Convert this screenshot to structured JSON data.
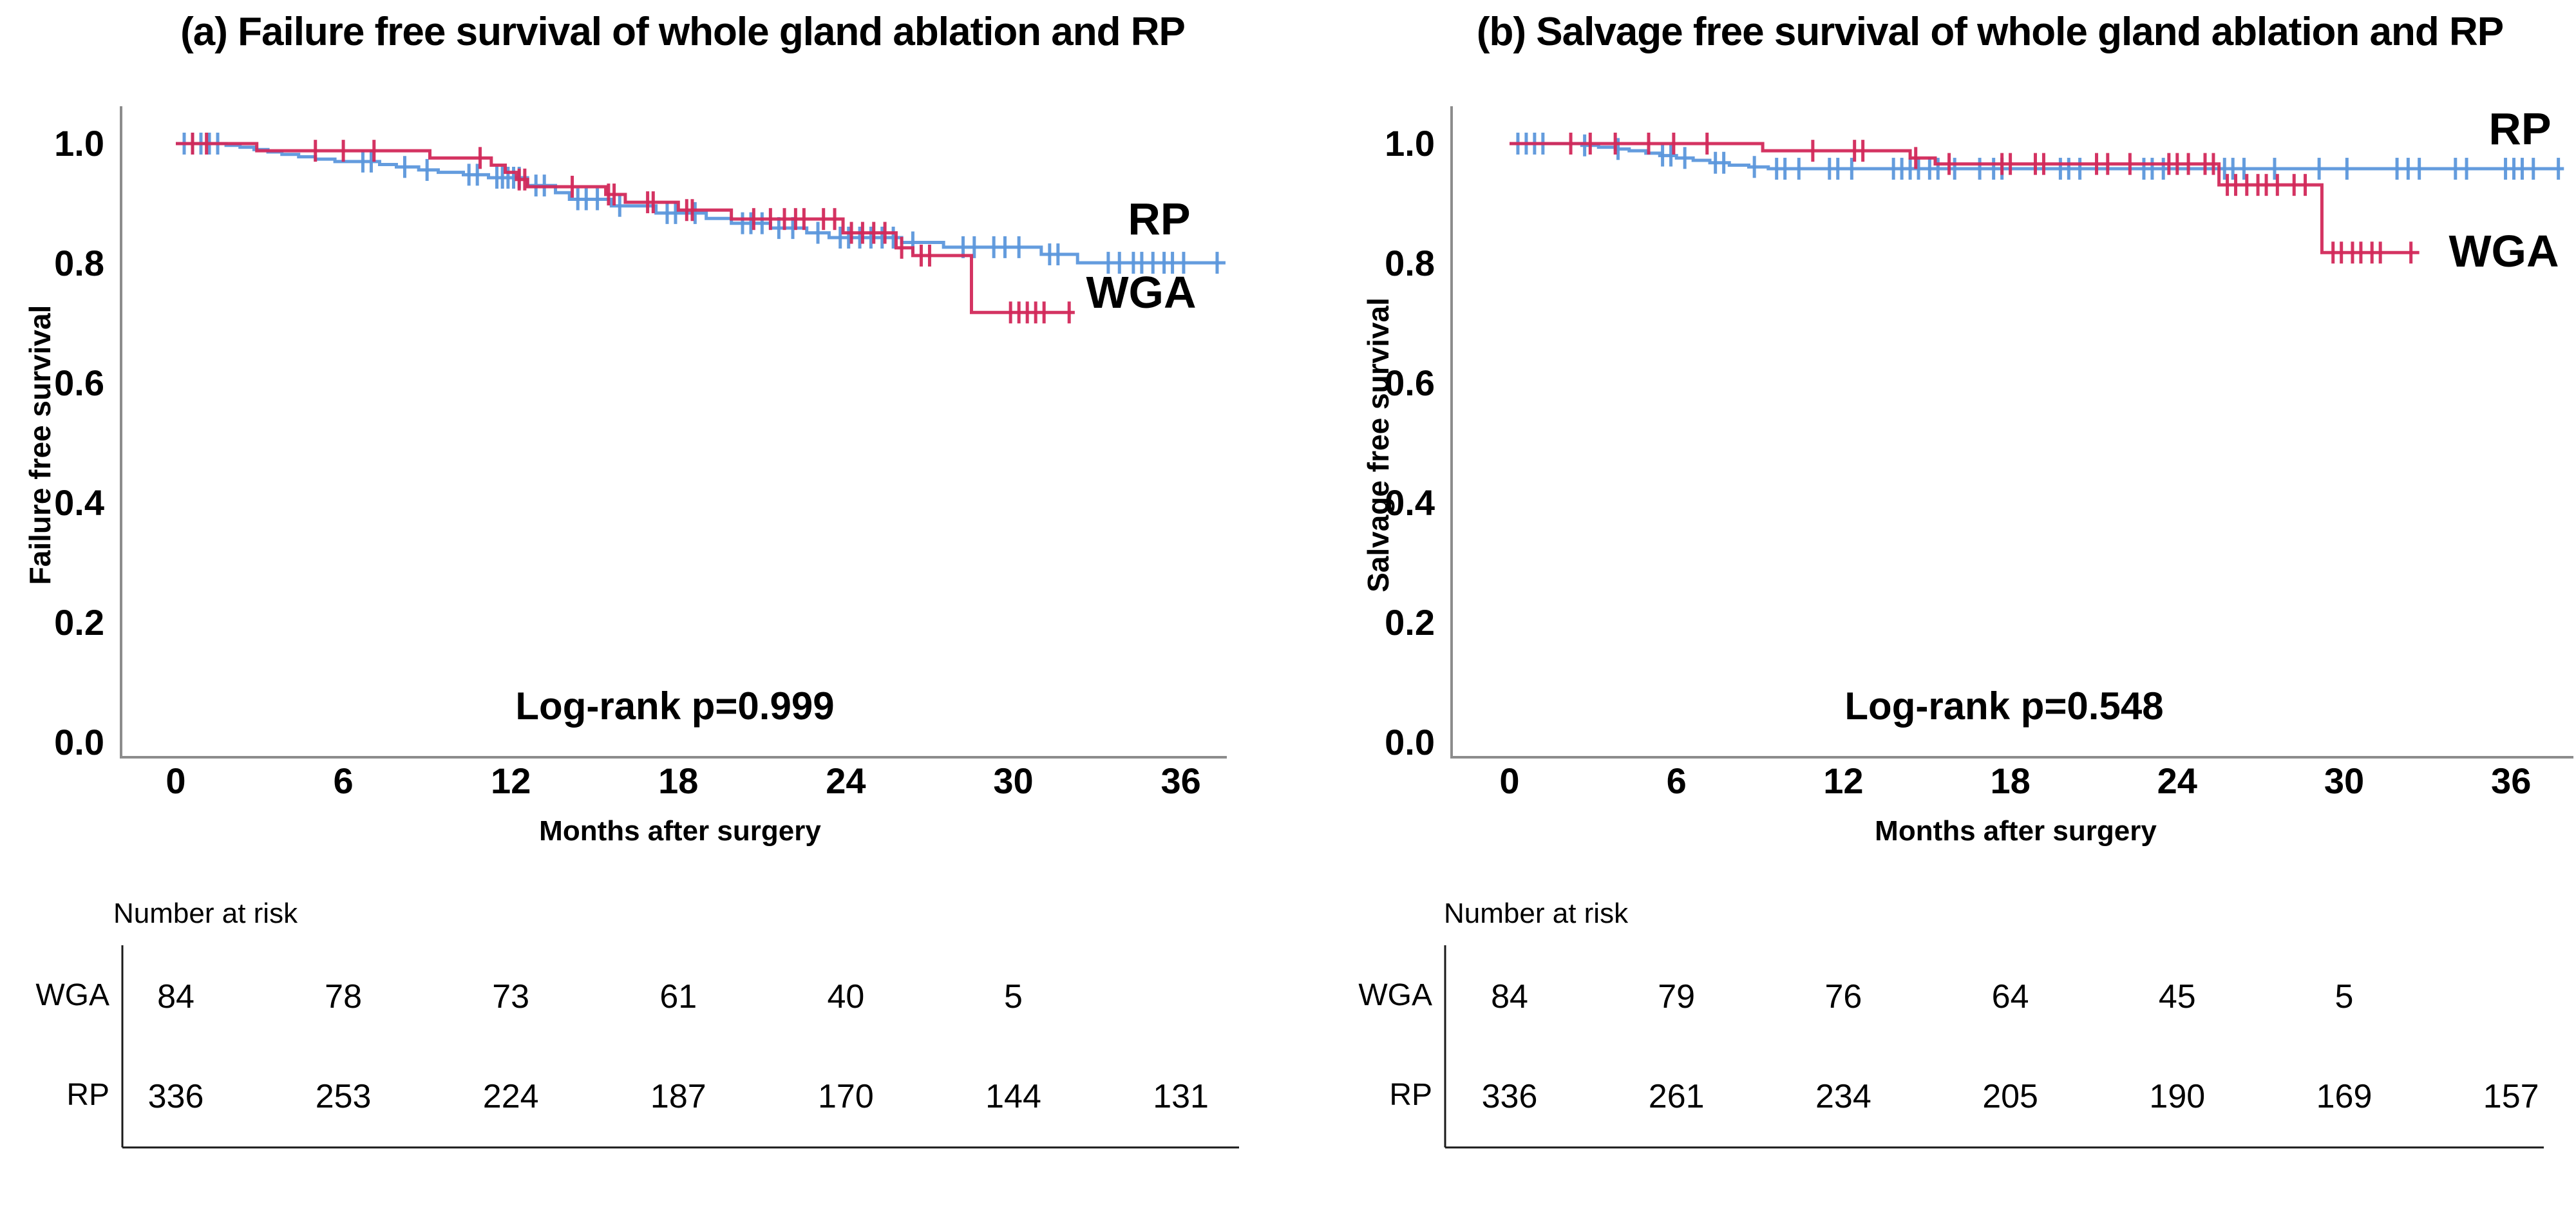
{
  "colors": {
    "rp": "#5C97DC",
    "wga": "#D2295A",
    "axis": "#8C8C8C",
    "table_line": "#1A1A1A",
    "text": "#000000"
  },
  "chart_data": [
    {
      "type": "line",
      "subtype": "kaplan-meier-step",
      "title": "(a) Failure free survival of whole gland ablation and RP",
      "ylabel": "Failure free survival",
      "xlabel": "Months after surgery",
      "annotation": "Log-rank p=0.999",
      "xlim": [
        0,
        38
      ],
      "ylim": [
        0.0,
        1.05
      ],
      "xticks": [
        0,
        6,
        12,
        18,
        24,
        30,
        36
      ],
      "yticks": [
        1.0,
        0.8,
        0.6,
        0.4,
        0.2,
        0.0
      ],
      "grid": false,
      "legend_position": "inline-right",
      "series": [
        {
          "name": "RP",
          "color_key": "rp",
          "steps": [
            [
              0,
              1.0
            ],
            [
              1.8,
              0.997
            ],
            [
              2.3,
              0.994
            ],
            [
              2.8,
              0.99
            ],
            [
              3.3,
              0.986
            ],
            [
              3.8,
              0.982
            ],
            [
              4.4,
              0.978
            ],
            [
              5.0,
              0.974
            ],
            [
              5.7,
              0.97
            ],
            [
              7.3,
              0.965
            ],
            [
              7.9,
              0.961
            ],
            [
              8.7,
              0.956
            ],
            [
              9.4,
              0.952
            ],
            [
              10.3,
              0.948
            ],
            [
              11.2,
              0.943
            ],
            [
              12.6,
              0.93
            ],
            [
              13.6,
              0.918
            ],
            [
              14.1,
              0.907
            ],
            [
              15.6,
              0.896
            ],
            [
              17.2,
              0.884
            ],
            [
              19.0,
              0.875
            ],
            [
              19.9,
              0.867
            ],
            [
              21.3,
              0.859
            ],
            [
              22.6,
              0.851
            ],
            [
              23.4,
              0.843
            ],
            [
              26.0,
              0.835
            ],
            [
              27.5,
              0.827
            ],
            [
              31.0,
              0.815
            ],
            [
              32.3,
              0.801
            ]
          ],
          "end": 37.6,
          "censors": [
            0.3,
            0.6,
            0.9,
            1.2,
            1.5,
            6.7,
            7.0,
            8.2,
            9.0,
            10.5,
            10.8,
            11.5,
            11.7,
            11.9,
            12.1,
            12.3,
            12.9,
            13.2,
            14.4,
            14.7,
            15.1,
            15.9,
            17.6,
            17.9,
            18.6,
            20.3,
            20.6,
            21.0,
            21.6,
            22.1,
            23.0,
            23.8,
            24.1,
            24.5,
            24.9,
            25.3,
            25.7,
            26.4,
            28.2,
            28.6,
            29.3,
            29.7,
            30.2,
            31.3,
            31.6,
            33.4,
            33.8,
            34.3,
            34.6,
            35.0,
            35.4,
            35.7,
            36.1,
            37.3
          ]
        },
        {
          "name": "WGA",
          "color_key": "wga",
          "steps": [
            [
              0,
              1.0
            ],
            [
              2.9,
              0.988
            ],
            [
              9.1,
              0.976
            ],
            [
              11.3,
              0.964
            ],
            [
              11.8,
              0.952
            ],
            [
              12.2,
              0.94
            ],
            [
              12.6,
              0.928
            ],
            [
              15.4,
              0.915
            ],
            [
              16.1,
              0.902
            ],
            [
              18.0,
              0.889
            ],
            [
              19.9,
              0.874
            ],
            [
              23.9,
              0.851
            ],
            [
              25.8,
              0.826
            ],
            [
              26.4,
              0.813
            ],
            [
              28.5,
              0.718
            ]
          ],
          "end": 32.2,
          "censors": [
            0.6,
            1.1,
            5.0,
            6.0,
            7.1,
            10.9,
            12.3,
            12.5,
            14.2,
            15.5,
            15.7,
            16.9,
            17.1,
            18.3,
            18.5,
            20.7,
            21.3,
            21.8,
            22.2,
            22.5,
            23.2,
            23.6,
            24.2,
            24.6,
            25.0,
            25.4,
            26.0,
            26.7,
            27.0,
            29.9,
            30.2,
            30.5,
            30.8,
            31.1,
            32.0
          ]
        }
      ],
      "number_at_risk": {
        "header": "Number at risk",
        "rows": [
          {
            "label": "WGA",
            "values": [
              84,
              78,
              73,
              61,
              40,
              5
            ]
          },
          {
            "label": "RP",
            "values": [
              336,
              253,
              224,
              187,
              170,
              144,
              131
            ]
          }
        ]
      }
    },
    {
      "type": "line",
      "subtype": "kaplan-meier-step",
      "title": "(b) Salvage free survival of whole gland ablation and RP",
      "ylabel": "Salvage free survival",
      "xlabel": "Months after surgery",
      "annotation": "Log-rank p=0.548",
      "xlim": [
        0,
        38
      ],
      "ylim": [
        0.0,
        1.05
      ],
      "xticks": [
        0,
        6,
        12,
        18,
        24,
        30,
        36
      ],
      "yticks": [
        1.0,
        0.8,
        0.6,
        0.4,
        0.2,
        0.0
      ],
      "grid": false,
      "legend_position": "inline-right",
      "series": [
        {
          "name": "RP",
          "color_key": "rp",
          "steps": [
            [
              0,
              1.0
            ],
            [
              2.6,
              0.997
            ],
            [
              3.2,
              0.994
            ],
            [
              3.8,
              0.991
            ],
            [
              4.3,
              0.988
            ],
            [
              4.9,
              0.984
            ],
            [
              5.4,
              0.98
            ],
            [
              6.0,
              0.976
            ],
            [
              6.6,
              0.972
            ],
            [
              7.2,
              0.968
            ],
            [
              7.9,
              0.964
            ],
            [
              8.6,
              0.961
            ],
            [
              9.3,
              0.958
            ]
          ],
          "end": 37.9,
          "censors": [
            0.3,
            0.6,
            0.9,
            1.2,
            2.7,
            3.9,
            5.5,
            5.8,
            6.3,
            7.4,
            7.7,
            8.8,
            9.6,
            9.9,
            10.4,
            11.5,
            11.8,
            12.3,
            13.8,
            14.1,
            14.4,
            14.7,
            15.1,
            15.4,
            16.0,
            16.9,
            17.4,
            17.7,
            19.8,
            20.1,
            20.5,
            22.8,
            23.1,
            23.5,
            25.7,
            26.0,
            26.4,
            27.5,
            29.1,
            30.1,
            31.9,
            32.3,
            32.7,
            34.0,
            34.4,
            35.8,
            36.1,
            36.4,
            36.8,
            37.7
          ]
        },
        {
          "name": "WGA",
          "color_key": "wga",
          "steps": [
            [
              0,
              1.0
            ],
            [
              9.1,
              0.988
            ],
            [
              14.4,
              0.976
            ],
            [
              15.3,
              0.966
            ],
            [
              25.5,
              0.931
            ],
            [
              29.2,
              0.818
            ]
          ],
          "end": 32.7,
          "censors": [
            2.2,
            2.9,
            3.8,
            5.0,
            5.9,
            7.1,
            10.9,
            12.4,
            12.7,
            14.6,
            15.8,
            17.7,
            18.0,
            18.9,
            19.2,
            21.1,
            21.5,
            22.3,
            23.7,
            24.0,
            24.4,
            25.0,
            25.3,
            25.8,
            26.1,
            26.5,
            26.9,
            27.2,
            27.6,
            28.2,
            28.6,
            29.6,
            29.9,
            30.3,
            30.6,
            31.0,
            31.3,
            32.4
          ]
        }
      ],
      "number_at_risk": {
        "header": "Number at risk",
        "rows": [
          {
            "label": "WGA",
            "values": [
              84,
              79,
              76,
              64,
              45,
              5
            ]
          },
          {
            "label": "RP",
            "values": [
              336,
              261,
              234,
              205,
              190,
              169,
              157
            ]
          }
        ]
      }
    }
  ]
}
